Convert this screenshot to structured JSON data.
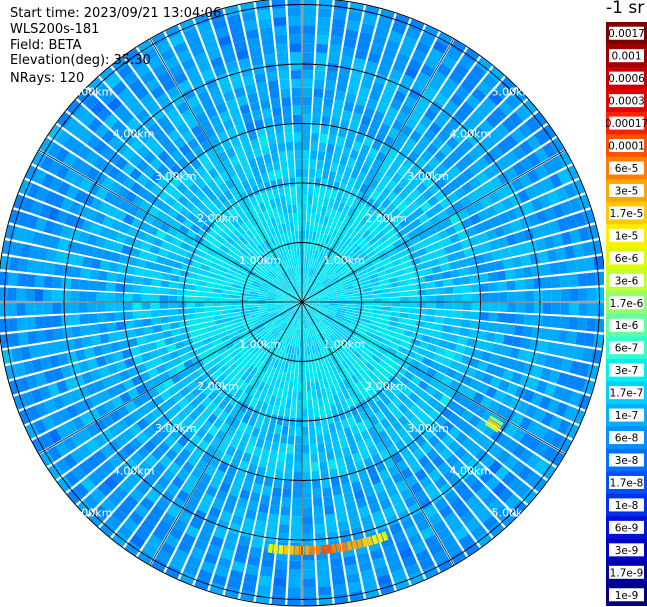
{
  "header": {
    "start_time": "Start time: 2023/09/21 13:04:06",
    "instrument": "WLS200s-181",
    "field": "Field: BETA",
    "elevation": "Elevation(deg): 35.30",
    "nrays": "NRays: 120"
  },
  "colorbar": {
    "unit_label": "-1 sr",
    "labels": [
      "0.0017",
      "0.001",
      "0.0006",
      "0.0003",
      "0.00017",
      "0.0001",
      "6e-5",
      "3e-5",
      "1.7e-5",
      "1e-5",
      "6e-6",
      "3e-6",
      "1.7e-6",
      "1e-6",
      "6e-7",
      "3e-7",
      "1.7e-7",
      "1e-7",
      "6e-8",
      "3e-8",
      "1.7e-8",
      "1e-8",
      "6e-9",
      "3e-9",
      "1.7e-9",
      "1e-9"
    ],
    "colors": [
      "#800000",
      "#a00000",
      "#c80000",
      "#e80000",
      "#ff2000",
      "#ff5000",
      "#ff7c00",
      "#ffa400",
      "#ffc800",
      "#ffee00",
      "#e0f800",
      "#c0ff30",
      "#90ff70",
      "#60ffa0",
      "#30ffd0",
      "#00f0f0",
      "#00d0ff",
      "#00b0ff",
      "#0090ff",
      "#0070ff",
      "#0050ff",
      "#0030f0",
      "#0010e0",
      "#0000c0",
      "#0000a0",
      "#000080"
    ]
  },
  "chart_data": {
    "type": "heatmap",
    "subtype": "lidar-ppi-polar",
    "field": "BETA",
    "nrays": 120,
    "range_rings_km": [
      1,
      2,
      3,
      4,
      5
    ],
    "ring_labels": [
      "1.00km",
      "2.00km",
      "3.00km",
      "4.00km",
      "5.00km"
    ],
    "max_range_km": 5.1,
    "color_scale": "log",
    "value_range": [
      1e-09,
      0.0017
    ],
    "radial_lines": 12,
    "features": [
      {
        "description_value": "high backscatter arc",
        "azimuth_deg": [
          160,
          188
        ],
        "range_km": [
          4.1,
          4.25
        ],
        "value": 0.0001
      },
      {
        "description_value": "elevated patch",
        "azimuth_deg": [
          121,
          124
        ],
        "range_km": [
          3.7,
          3.95
        ],
        "value": 1.7e-05
      }
    ]
  }
}
